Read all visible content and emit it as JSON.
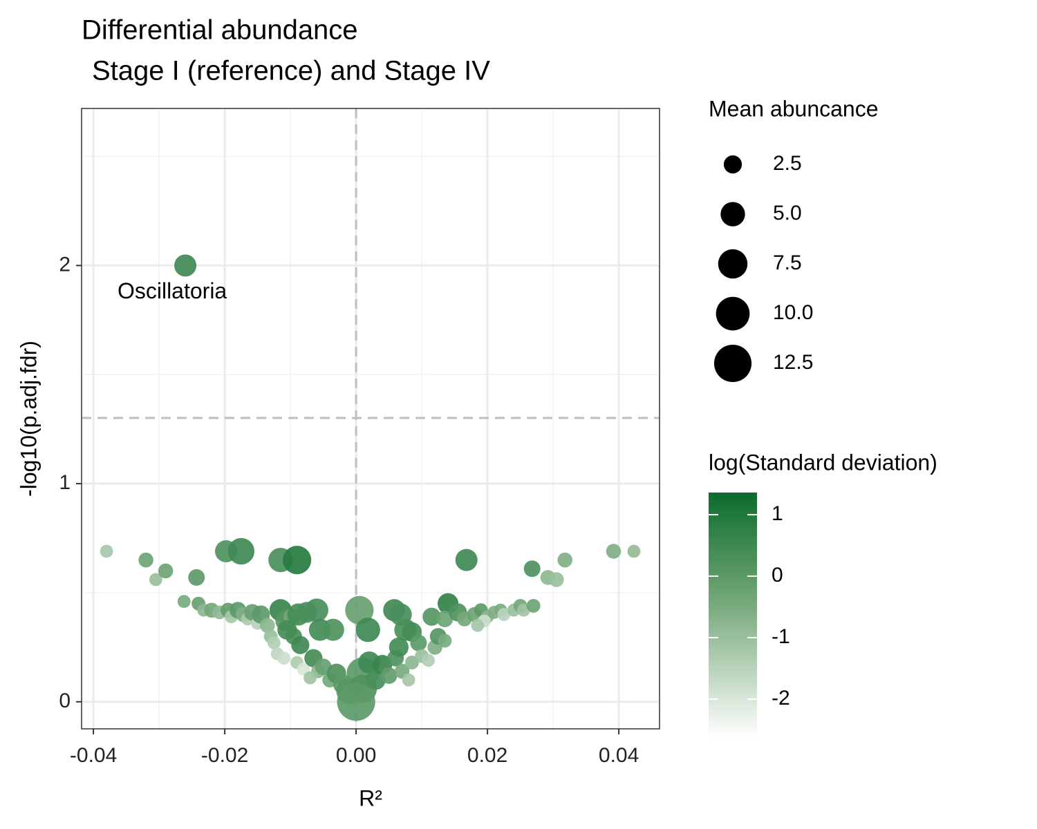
{
  "chart_data": {
    "type": "scatter",
    "title": "Differential abundance",
    "subtitle": "Stage I (reference) and Stage IV",
    "xlabel": "R²",
    "ylabel": "-log10(p.adj.fdr)",
    "xlim": [
      -0.0418,
      0.0462
    ],
    "ylim": [
      -0.124,
      2.72
    ],
    "xticks": [
      -0.04,
      -0.02,
      {
        "value": 0,
        "label": "0.00"
      },
      0.02,
      0.04
    ],
    "yticks": [
      0,
      1,
      2
    ],
    "grid": true,
    "reference_lines": {
      "x": 0,
      "y": 1.301
    },
    "annotations": [
      {
        "text": "Oscillatoria",
        "point": 0
      }
    ],
    "x": [
      -0.026,
      -0.038,
      -0.032,
      -0.0305,
      -0.029,
      -0.0243,
      -0.0198,
      -0.0175,
      -0.0115,
      -0.009,
      0.0168,
      0.0268,
      0.0292,
      0.0305,
      0.0318,
      0.0392,
      0.0423,
      -0.0262,
      -0.024,
      -0.0232,
      -0.022,
      -0.0208,
      -0.0195,
      -0.019,
      -0.018,
      -0.0172,
      -0.0165,
      -0.0158,
      -0.015,
      -0.0145,
      -0.0135,
      -0.0115,
      -0.0108,
      -0.0098,
      -0.0088,
      -0.0075,
      -0.006,
      -0.0055,
      -0.0035,
      0.0005,
      0.0018,
      0.0058,
      0.0068,
      0.0075,
      0.0085,
      0.0115,
      0.014,
      0.0135,
      0.0155,
      0.0165,
      0.018,
      0.019,
      0.02,
      0.021,
      0.022,
      0.0225,
      0.024,
      0.025,
      0.0255,
      0.027,
      0.0195,
      0.0185,
      -0.013,
      -0.0125,
      -0.012,
      -0.011,
      -0.0095,
      -0.0085,
      -0.009,
      -0.008,
      -0.0065,
      -0.0058,
      -0.005,
      -0.004,
      -0.003,
      -0.002,
      -0.001,
      0.001,
      0.001,
      0.002,
      0.003,
      0.004,
      0.005,
      0.006,
      0.0065,
      0.007,
      0.0085,
      0.0095,
      0.01,
      0.011,
      0.012,
      0.0125,
      0.0135,
      0.008,
      -0.007,
      -0.0105,
      0
    ],
    "values": [
      2.0,
      0.69,
      0.65,
      0.56,
      0.6,
      0.57,
      0.69,
      0.69,
      0.65,
      0.65,
      0.65,
      0.61,
      0.57,
      0.56,
      0.65,
      0.69,
      0.69,
      0.46,
      0.45,
      0.42,
      0.42,
      0.41,
      0.42,
      0.39,
      0.42,
      0.4,
      0.38,
      0.41,
      0.36,
      0.4,
      0.35,
      0.42,
      0.37,
      0.39,
      0.4,
      0.41,
      0.42,
      0.33,
      0.33,
      0.42,
      0.33,
      0.42,
      0.4,
      0.33,
      0.32,
      0.39,
      0.45,
      0.38,
      0.41,
      0.38,
      0.4,
      0.42,
      0.39,
      0.41,
      0.42,
      0.4,
      0.42,
      0.44,
      0.42,
      0.44,
      0.37,
      0.35,
      0.3,
      0.27,
      0.22,
      0.2,
      0.3,
      0.26,
      0.18,
      0.15,
      0.2,
      0.14,
      0.16,
      0.1,
      0.13,
      0.08,
      0.05,
      0.13,
      0.06,
      0.18,
      0.1,
      0.17,
      0.12,
      0.2,
      0.25,
      0.14,
      0.18,
      0.27,
      0.21,
      0.19,
      0.25,
      0.3,
      0.28,
      0.1,
      0.11,
      0.33,
      0.0
    ],
    "sizes": [
      4,
      1,
      1.5,
      1,
      1.5,
      2,
      4,
      6,
      5,
      7,
      4,
      2,
      1.5,
      1.5,
      1.5,
      1.5,
      1,
      1,
      1.2,
      1,
      1.5,
      1.2,
      1.5,
      1,
      2,
      1.5,
      1,
      2,
      1,
      2.5,
      1.5,
      4,
      3,
      2,
      4,
      3.5,
      4.5,
      4,
      4,
      7,
      5,
      4,
      4,
      4,
      3,
      2.5,
      3.5,
      2,
      2.5,
      1.5,
      1.5,
      1.2,
      1,
      1,
      1,
      1,
      1,
      1.2,
      1,
      1.2,
      1,
      1,
      1.2,
      1,
      1,
      1,
      2,
      2.5,
      1,
      1,
      2.5,
      1.2,
      2,
      1.5,
      3,
      3,
      6,
      9,
      7,
      4,
      3,
      3,
      2,
      2,
      3,
      1.5,
      1.2,
      2,
      1.2,
      1,
      1.5,
      2,
      1.2,
      1,
      1,
      3,
      13
    ],
    "color_values": [
      0.5,
      -1.2,
      -0.3,
      -1,
      -0.3,
      0,
      0.2,
      0.5,
      0.3,
      0.9,
      0.5,
      0.2,
      -0.8,
      -1,
      -0.6,
      -0.6,
      -0.9,
      -0.5,
      -0.2,
      -0.8,
      -0.4,
      -0.9,
      -0.1,
      -1.2,
      0,
      -0.6,
      -1.3,
      -0.2,
      -1.5,
      0,
      -0.8,
      0.6,
      0.1,
      -0.4,
      0.4,
      0.3,
      0.3,
      0.4,
      0.2,
      -0.2,
      0.5,
      0.5,
      0.3,
      0.3,
      0.4,
      0.1,
      0.7,
      -0.3,
      0.2,
      -0.4,
      -0.3,
      0,
      -0.8,
      -0.6,
      -0.5,
      -1.5,
      -1,
      -0.4,
      -1.1,
      -0.3,
      -1.8,
      -1.2,
      -1,
      -1.4,
      -1.6,
      -1.8,
      0.3,
      0.5,
      -1.3,
      -2,
      0.4,
      -0.8,
      -0.2,
      -0.4,
      0.2,
      0,
      0.1,
      0,
      0.2,
      0.5,
      0.3,
      0.6,
      -0.1,
      0.2,
      0.4,
      -0.5,
      -0.8,
      0,
      -1,
      -1.4,
      -0.6,
      0.1,
      -0.5,
      -1.2,
      -1.1,
      0.4,
      0
    ],
    "size_legend": {
      "title": "Mean abuncance",
      "values": [
        2.5,
        {
          "value": 5,
          "label": "5.0"
        },
        7.5,
        {
          "value": 10,
          "label": "10.0"
        },
        12.5
      ]
    },
    "color_legend": {
      "title": "log(Standard deviation)",
      "lim": [
        -2.63,
        1.36
      ],
      "ticks": [
        1,
        0,
        -1,
        -2
      ],
      "stops": [
        {
          "value": -2.63,
          "color": "#ffffff"
        },
        {
          "value": -0.5,
          "color": "#7aab7e"
        },
        {
          "value": 1.36,
          "color": "#0b6b2c"
        }
      ]
    }
  }
}
